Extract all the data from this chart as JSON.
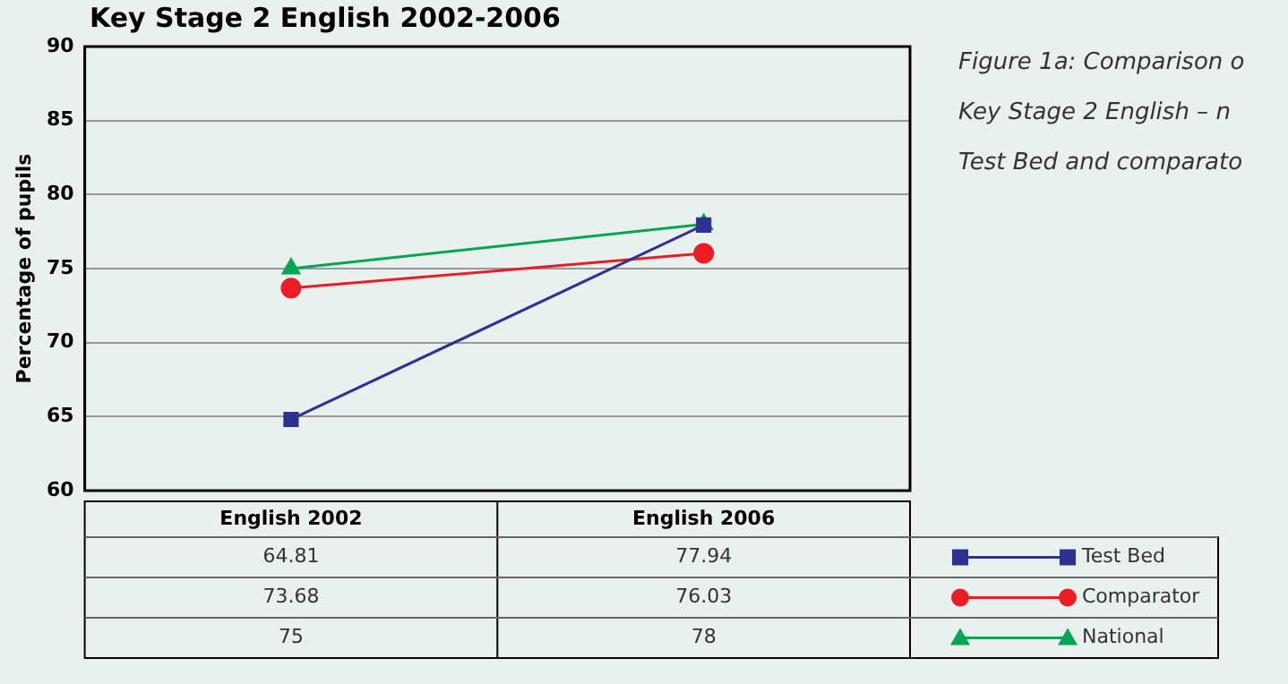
{
  "chart_data": {
    "type": "line",
    "title": "Key Stage 2 English 2002-2006",
    "ylabel": "Percentage of pupils",
    "categories": [
      "English 2002",
      "English 2006"
    ],
    "series": [
      {
        "name": "Test Bed",
        "color": "#2e3192",
        "values": [
          64.81,
          77.94
        ],
        "marker": "square"
      },
      {
        "name": "Comparator",
        "color": "#ed1c24",
        "values": [
          73.68,
          76.03
        ],
        "marker": "circle"
      },
      {
        "name": "National",
        "color": "#00a651",
        "values": [
          75,
          78
        ],
        "marker": "triangle"
      }
    ],
    "ylim": [
      60,
      90
    ],
    "yticks": [
      60,
      65,
      70,
      75,
      80,
      85,
      90
    ],
    "grid": "y",
    "legend": "bottom right",
    "data_labels": true,
    "annotations": [
      "Figure 1a: Comparison o",
      "Key Stage 2 English – n",
      "Test Bed and comparato"
    ]
  }
}
